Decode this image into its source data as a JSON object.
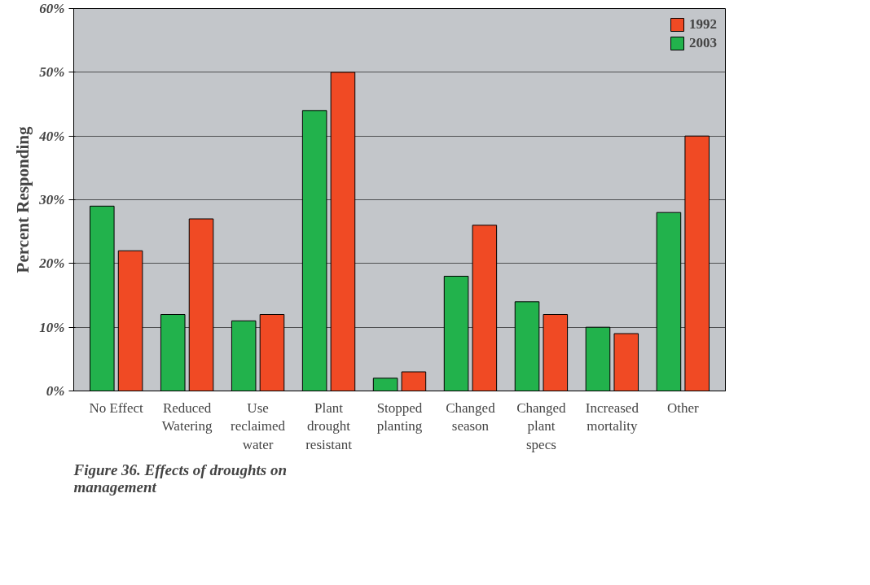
{
  "chart_data": {
    "type": "bar",
    "ylabel": "Percent Responding",
    "categories": [
      "No Effect",
      "Reduced Watering",
      "Use reclaimed water",
      "Plant drought resistant",
      "Stopped planting",
      "Changed season",
      "Changed plant specs",
      "Increased mortality",
      "Other"
    ],
    "series": [
      {
        "name": "2003",
        "color": "#22b24c",
        "values": [
          29,
          12,
          11,
          44,
          2,
          18,
          14,
          10,
          28
        ]
      },
      {
        "name": "1992",
        "color": "#f04a24",
        "values": [
          22,
          27,
          12,
          50,
          3,
          26,
          12,
          9,
          40
        ]
      }
    ],
    "ylim": [
      0,
      60
    ],
    "yticks": [
      {
        "value": 0,
        "label": "0%"
      },
      {
        "value": 10,
        "label": "10%"
      },
      {
        "value": 20,
        "label": "20%"
      },
      {
        "value": 30,
        "label": "30%"
      },
      {
        "value": 40,
        "label": "40%"
      },
      {
        "value": 50,
        "label": "50%"
      },
      {
        "value": 60,
        "label": "60%"
      }
    ],
    "grid": "y",
    "legend": "top right",
    "annotations": [
      "Figure 36.  Effects of droughts on management"
    ]
  }
}
